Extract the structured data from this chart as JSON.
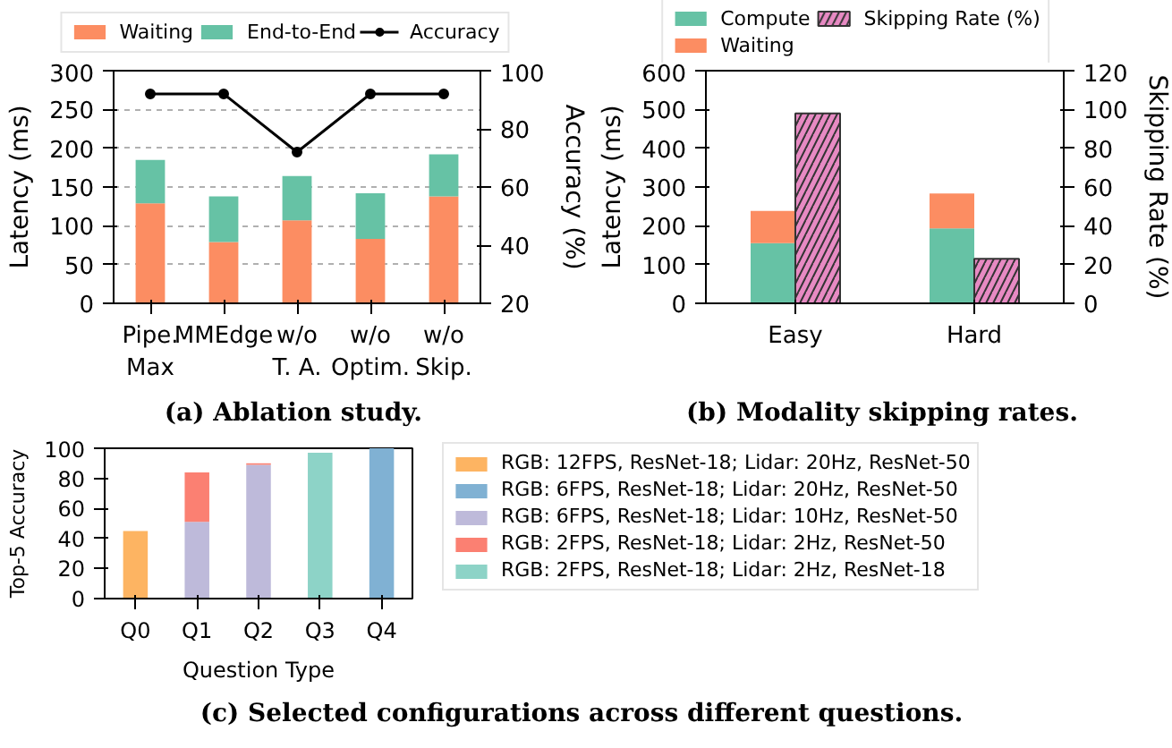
{
  "chart_data": [
    {
      "type": "bar",
      "title": "(a) Ablation study.",
      "ylabel": "Latency (ms)",
      "y2label": "Accuracy (%)",
      "categories": [
        "Pipe.\nMax",
        "MMEdge",
        "w/o\nT. A.",
        "w/o\nOptim.",
        "w/o\nSkip."
      ],
      "stacked": true,
      "series": [
        {
          "name": "Waiting",
          "color": "#fc8d62",
          "values": [
            129,
            79,
            107,
            83,
            138
          ]
        },
        {
          "name": "End-to-End",
          "color": "#66c2a5",
          "values": [
            56,
            59,
            57,
            59,
            54
          ]
        },
        {
          "name": "Accuracy",
          "type": "line",
          "axis": "y2",
          "color": "#000000",
          "marker": "circle",
          "values": [
            92,
            92,
            72,
            92,
            92
          ]
        }
      ],
      "ylim": [
        0,
        300
      ],
      "yticks": [
        0,
        50,
        100,
        150,
        200,
        250,
        300
      ],
      "y2lim": [
        20,
        100
      ],
      "y2ticks": [
        20,
        40,
        60,
        80,
        100
      ],
      "grid": "y",
      "legend": "top"
    },
    {
      "type": "bar",
      "title": "(b) Modality skipping rates.",
      "ylabel": "Latency (ms)",
      "y2label": "Skipping Rate (%)",
      "categories": [
        "Easy",
        "Hard"
      ],
      "stacked": true,
      "series": [
        {
          "name": "Compute",
          "color": "#66c2a5",
          "values": [
            155,
            193
          ]
        },
        {
          "name": "Waiting",
          "color": "#fc8d62",
          "values": [
            83,
            90
          ]
        },
        {
          "name": "Skipping Rate (%)",
          "axis": "y2",
          "color": "#e78ac3",
          "values": [
            98,
            23
          ]
        }
      ],
      "ylim": [
        0,
        600
      ],
      "yticks": [
        0,
        100,
        200,
        300,
        400,
        500,
        600
      ],
      "y2lim": [
        0,
        120
      ],
      "y2ticks": [
        0,
        20,
        40,
        60,
        80,
        100,
        120
      ],
      "legend": "top"
    },
    {
      "type": "bar",
      "title": "(c) Selected configurations across different questions.",
      "xlabel": "Question Type",
      "ylabel": "Top-5 Accuracy",
      "categories": [
        "Q0",
        "Q1",
        "Q2",
        "Q3",
        "Q4"
      ],
      "stacked": true,
      "series": [
        {
          "name": "RGB: 12FPS, ResNet-18; Lidar: 20Hz, ResNet-50",
          "color": "#fdb462",
          "values": [
            45,
            null,
            null,
            null,
            null
          ]
        },
        {
          "name": "RGB: 6FPS, ResNet-18; Lidar: 20Hz, ResNet-50",
          "color": "#80b1d3",
          "values": [
            null,
            null,
            null,
            null,
            100
          ]
        },
        {
          "name": "RGB: 6FPS, ResNet-18; Lidar: 10Hz, ResNet-50",
          "color": "#bebada",
          "values": [
            null,
            51,
            89,
            null,
            null
          ]
        },
        {
          "name": "RGB: 2FPS, ResNet-18; Lidar: 2Hz, ResNet-50",
          "color": "#fb8072",
          "values": [
            null,
            33,
            1,
            null,
            null
          ]
        },
        {
          "name": "RGB: 2FPS, ResNet-18; Lidar: 2Hz, ResNet-18",
          "color": "#8dd3c7",
          "values": [
            null,
            null,
            null,
            97,
            null
          ]
        }
      ],
      "ylim": [
        0,
        100
      ],
      "yticks": [
        0,
        20,
        40,
        60,
        80,
        100
      ],
      "legend": "right"
    }
  ]
}
